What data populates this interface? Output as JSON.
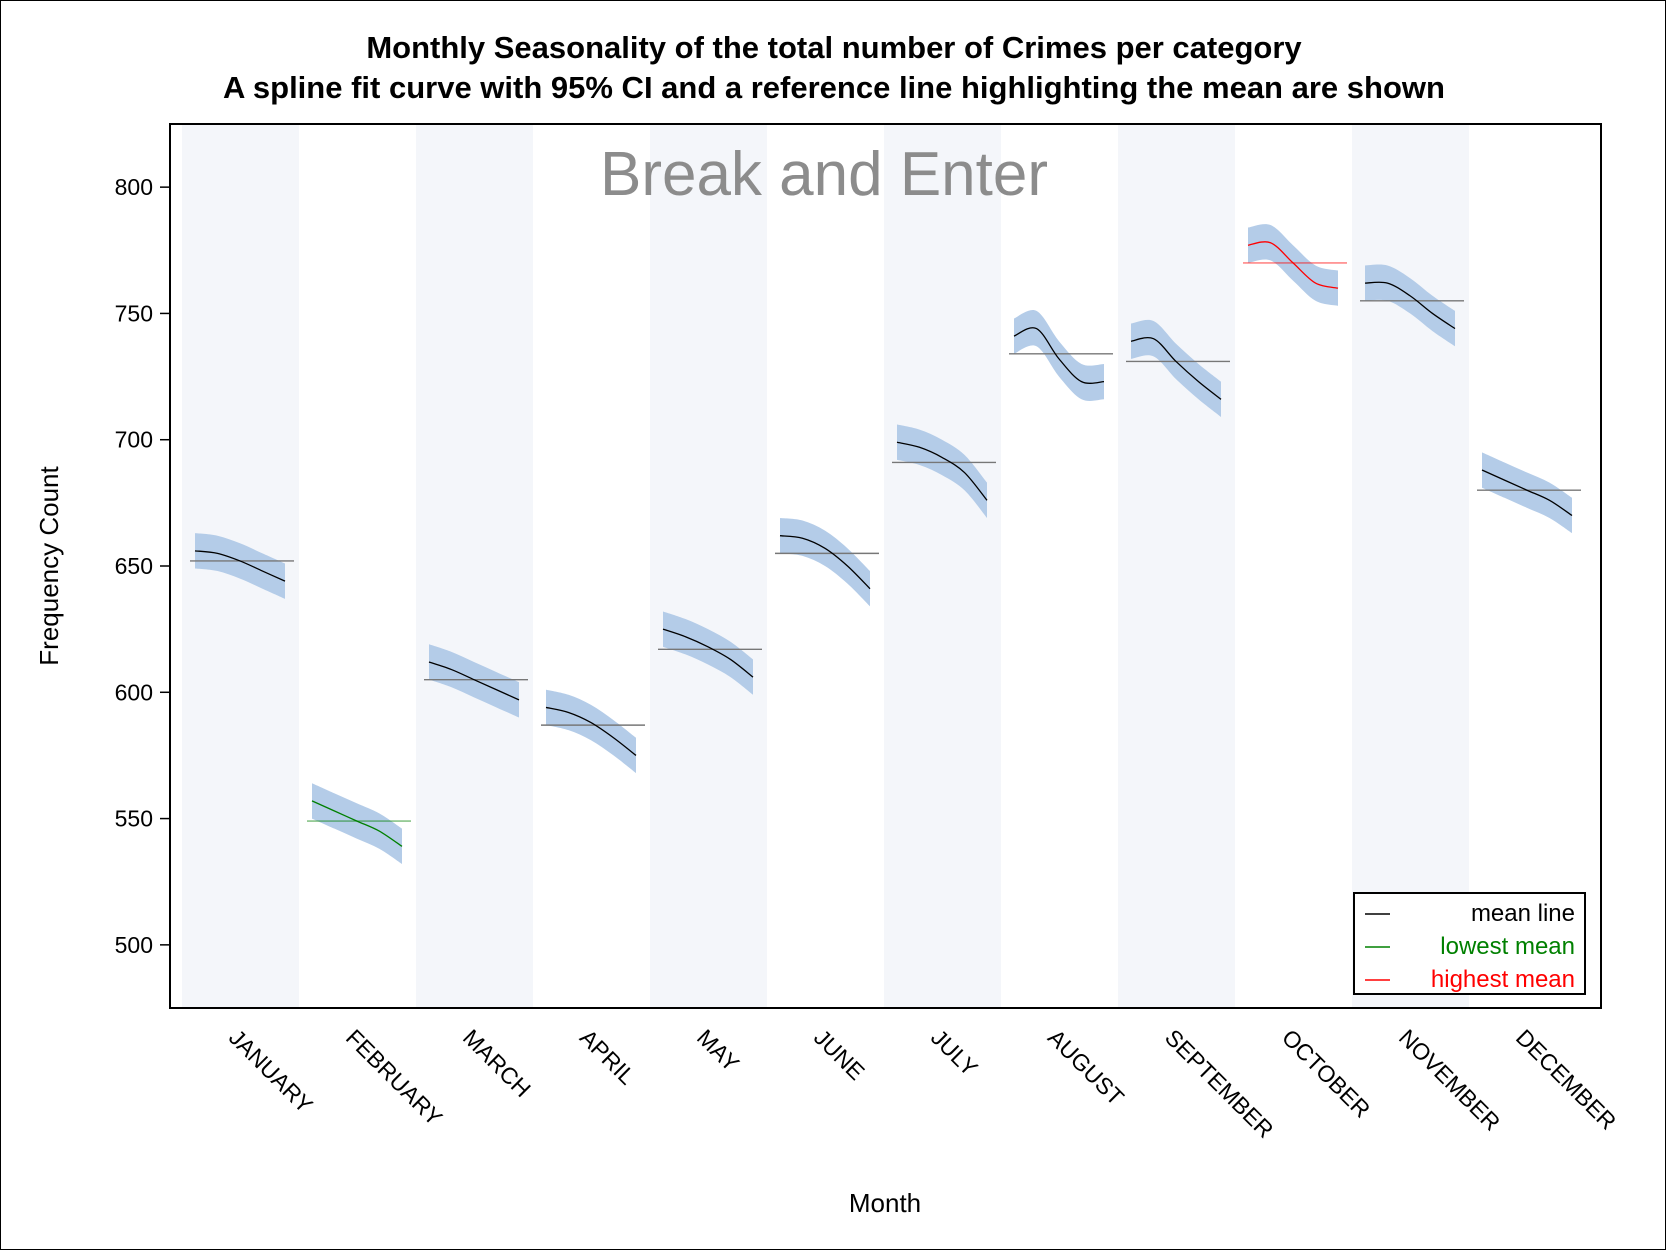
{
  "chart_data": {
    "type": "line",
    "title": "Monthly Seasonality of the total number of Crimes per category",
    "subtitle": "A spline fit curve with 95% CI and a reference line highlighting the mean are shown",
    "panel_label": "Break and Enter",
    "xlabel": "Month",
    "ylabel": "Frequency Count",
    "ylim": [
      475,
      825
    ],
    "yticks": [
      500,
      550,
      600,
      650,
      700,
      750,
      800
    ],
    "ytick_labels": [
      "500",
      "550",
      "600",
      "650",
      "700",
      "750",
      "800"
    ],
    "alternating_bands": true,
    "categories": [
      "JANUARY",
      "FEBRUARY",
      "MARCH",
      "APRIL",
      "MAY",
      "JUNE",
      "JULY",
      "AUGUST",
      "SEPTEMBER",
      "OCTOBER",
      "NOVEMBER",
      "DECEMBER"
    ],
    "means": [
      652,
      549,
      605,
      587,
      617,
      655,
      691,
      734,
      731,
      770,
      755,
      680
    ],
    "spline_fits": [
      {
        "month": "JANUARY",
        "y": [
          656,
          655,
          652,
          648,
          644
        ],
        "color": "black"
      },
      {
        "month": "FEBRUARY",
        "y": [
          557,
          553,
          549,
          545,
          539
        ],
        "color": "green"
      },
      {
        "month": "MARCH",
        "y": [
          612,
          609,
          605,
          601,
          597
        ],
        "color": "black"
      },
      {
        "month": "APRIL",
        "y": [
          594,
          592,
          588,
          582,
          575
        ],
        "color": "black"
      },
      {
        "month": "MAY",
        "y": [
          625,
          622,
          618,
          613,
          606
        ],
        "color": "black"
      },
      {
        "month": "JUNE",
        "y": [
          662,
          661,
          657,
          650,
          641
        ],
        "color": "black"
      },
      {
        "month": "JULY",
        "y": [
          699,
          697,
          693,
          687,
          676
        ],
        "color": "black"
      },
      {
        "month": "AUGUST",
        "y": [
          741,
          744,
          732,
          723,
          723
        ],
        "color": "black"
      },
      {
        "month": "SEPTEMBER",
        "y": [
          739,
          740,
          731,
          723,
          716
        ],
        "color": "black"
      },
      {
        "month": "OCTOBER",
        "y": [
          777,
          778,
          770,
          762,
          760
        ],
        "color": "red"
      },
      {
        "month": "NOVEMBER",
        "y": [
          762,
          762,
          757,
          750,
          744
        ],
        "color": "black"
      },
      {
        "month": "DECEMBER",
        "y": [
          688,
          684,
          680,
          676,
          670
        ],
        "color": "black"
      }
    ],
    "ci_halfwidth": 7,
    "ci_color": "#b4cce8",
    "series_colors": {
      "mean": "#000000",
      "lowest": "#008000",
      "highest": "#ff0000"
    },
    "legend": {
      "position": "bottom-right",
      "entries": [
        {
          "label": "mean line",
          "color": "#000000"
        },
        {
          "label": "lowest mean",
          "color": "#008000"
        },
        {
          "label": "highest mean",
          "color": "#ff0000"
        }
      ]
    }
  }
}
